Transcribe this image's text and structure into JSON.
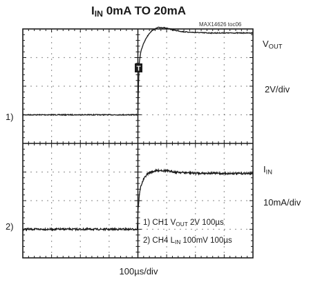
{
  "title": {
    "main": "I",
    "sub": "IN",
    "rest": " 0mA TO 20mA"
  },
  "ref_code": "MAX14626 toc06",
  "trigger_marker": "T",
  "right_labels": {
    "vout": {
      "main": "V",
      "sub": "OUT"
    },
    "vout_scale": "2V/div",
    "iin": {
      "main": "I",
      "sub": "IN"
    },
    "iin_scale": "10mA/div"
  },
  "channel_markers": {
    "ch1": "1)",
    "ch2": "2)"
  },
  "legend": {
    "line1": {
      "pre": "1) CH1 V",
      "sub": "OUT",
      "post": " 2V 100µs"
    },
    "line2": {
      "pre": "2) CH4 L",
      "sub": "IN",
      "post": " 100mV 100µs"
    }
  },
  "timebase": "100µs/div",
  "colors": {
    "trace": "#1a1a1a",
    "grid_dots": "#555555",
    "background": "#ffffff"
  },
  "chart_data": {
    "type": "line",
    "grid": {
      "x_divisions": 8,
      "y_divisions": 8,
      "graticule": "dotted"
    },
    "x_unit": "µs",
    "x_per_div": 100,
    "xlim": [
      0,
      800
    ],
    "series": [
      {
        "name": "VOUT",
        "y_unit": "V",
        "y_per_div": 2,
        "zero_div_from_top": 3,
        "x": [
          0,
          400,
          402,
          405,
          410,
          420,
          430,
          440,
          450,
          470,
          490,
          510,
          530,
          560,
          600,
          650,
          700,
          750,
          800
        ],
        "y": [
          0,
          0,
          2.0,
          3.7,
          4.4,
          5.0,
          5.4,
          5.7,
          5.9,
          6.1,
          6.1,
          6.0,
          5.9,
          5.8,
          5.75,
          5.72,
          5.72,
          5.72,
          5.72
        ]
      },
      {
        "name": "IIN",
        "y_unit": "mA",
        "y_per_div": 10,
        "zero_div_from_top": 7,
        "x": [
          0,
          398,
          400,
          405,
          410,
          420,
          430,
          440,
          460,
          480,
          500,
          530,
          560,
          600,
          650,
          700,
          750,
          800
        ],
        "y": [
          0,
          0,
          6,
          12,
          15,
          17.5,
          19,
          19.8,
          20.4,
          20.6,
          20.4,
          20.0,
          19.8,
          19.6,
          19.6,
          19.5,
          19.5,
          19.5
        ]
      }
    ]
  }
}
